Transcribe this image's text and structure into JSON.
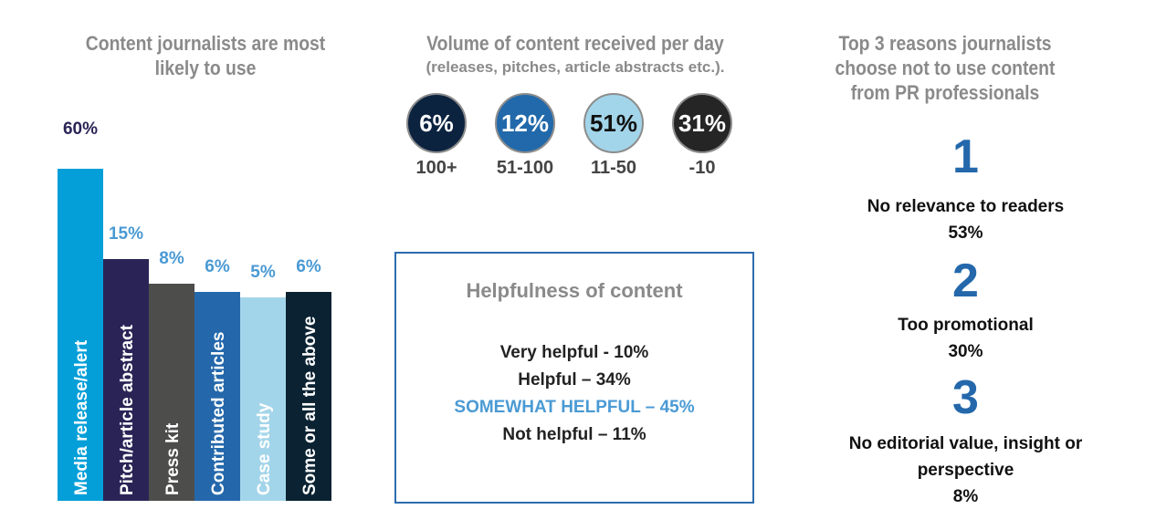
{
  "chart_data": {
    "type": "bar",
    "title": "Content journalists are most likely to use",
    "categories": [
      "Media release/alert",
      "Pitch/article abstract",
      "Press kit",
      "Contributed articles",
      "Case study",
      "Some or all the above"
    ],
    "values": [
      60,
      15,
      8,
      6,
      5,
      6
    ],
    "value_labels": [
      "60%",
      "15%",
      "8%",
      "6%",
      "5%",
      "6%"
    ],
    "colors": [
      "#049fd8",
      "#2a2456",
      "#4d4e4c",
      "#2468ab",
      "#a3d5ea",
      "#0a2232"
    ],
    "xlabel": "",
    "ylabel": ""
  },
  "volume": {
    "title": "Volume of content received per day",
    "subtitle": "(releases, pitches, article abstracts etc.).",
    "items": [
      {
        "pct": "6%",
        "range": "100+",
        "color": "#0c2340",
        "text": "#ffffff"
      },
      {
        "pct": "12%",
        "range": "51-100",
        "color": "#2269ab",
        "text": "#ffffff"
      },
      {
        "pct": "51%",
        "range": "11-50",
        "color": "#a3d5ea",
        "text": "#111111"
      },
      {
        "pct": "31%",
        "range": "-10",
        "color": "#252525",
        "text": "#ffffff"
      }
    ]
  },
  "helpfulness": {
    "title": "Helpfulness of content",
    "lines": [
      "Very helpful - 10%",
      "Helpful – 34%",
      "SOMEWHAT HELPFUL – 45%",
      "Not helpful – 11%"
    ]
  },
  "reasons": {
    "title": "Top 3 reasons journalists choose not to use content from PR professionals",
    "items": [
      {
        "rank": "1",
        "label": "No relevance to readers",
        "pct": "53%"
      },
      {
        "rank": "2",
        "label": "Too promotional",
        "pct": "30%"
      },
      {
        "rank": "3",
        "label": "No editorial value, insight or perspective",
        "pct": "8%"
      }
    ]
  }
}
